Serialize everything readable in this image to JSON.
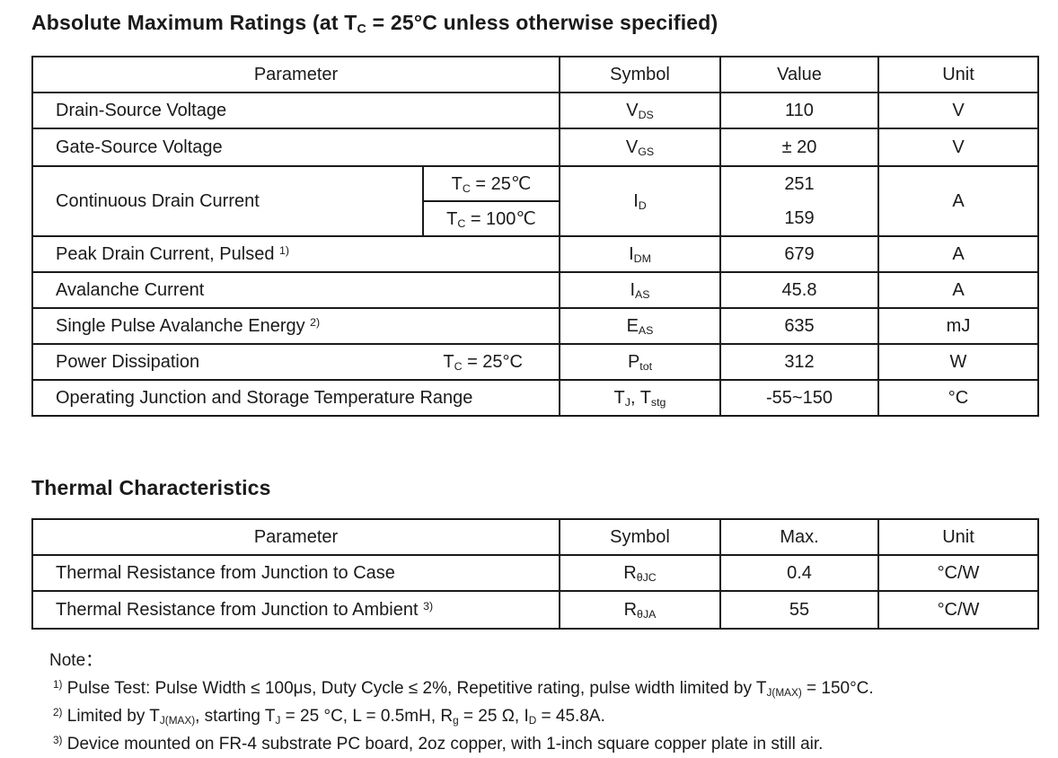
{
  "colors": {
    "text": "#1a1a1a",
    "border": "#1a1a1a",
    "background": "#ffffff"
  },
  "abs_max": {
    "title": [
      {
        "text": "Absolute Maximum Ratings (at T"
      },
      {
        "sub": "C"
      },
      {
        "text": " = 25°C unless otherwise specified)"
      }
    ],
    "headers": [
      "Parameter",
      "Symbol",
      "Value",
      "Unit"
    ],
    "rows": {
      "vds": {
        "parameter": [
          {
            "text": "Drain-Source Voltage"
          }
        ],
        "symbol": [
          {
            "text": "V"
          },
          {
            "sub": "DS"
          }
        ],
        "value": "110",
        "unit": "V"
      },
      "vgs": {
        "parameter": [
          {
            "text": "Gate-Source Voltage"
          }
        ],
        "symbol": [
          {
            "text": "V"
          },
          {
            "sub": "GS"
          }
        ],
        "value": "± 20",
        "unit": "V"
      },
      "id": {
        "parameter": [
          {
            "text": "Continuous Drain Current"
          }
        ],
        "cond1": [
          {
            "text": "T"
          },
          {
            "sub": "C"
          },
          {
            "text": " = 25℃"
          }
        ],
        "cond2": [
          {
            "text": "T"
          },
          {
            "sub": "C"
          },
          {
            "text": " = 100℃"
          }
        ],
        "symbol": [
          {
            "text": "I"
          },
          {
            "sub": "D"
          }
        ],
        "value1": "251",
        "value2": "159",
        "unit": "A"
      },
      "idm": {
        "parameter": [
          {
            "text": "Peak Drain Current, Pulsed "
          },
          {
            "sup": "1)"
          }
        ],
        "symbol": [
          {
            "text": "I"
          },
          {
            "sub": "DM"
          }
        ],
        "value": "679",
        "unit": "A"
      },
      "ias": {
        "parameter": [
          {
            "text": "Avalanche Current"
          }
        ],
        "symbol": [
          {
            "text": "I"
          },
          {
            "sub": "AS"
          }
        ],
        "value": "45.8",
        "unit": "A"
      },
      "eas": {
        "parameter": [
          {
            "text": "Single Pulse Avalanche Energy "
          },
          {
            "sup": "2)"
          }
        ],
        "symbol": [
          {
            "text": "E"
          },
          {
            "sub": "AS"
          }
        ],
        "value": "635",
        "unit": "mJ"
      },
      "ptot": {
        "parameter": [
          {
            "text": "Power Dissipation"
          }
        ],
        "condition": [
          {
            "text": "T"
          },
          {
            "sub": "C"
          },
          {
            "text": " = 25°C"
          }
        ],
        "symbol": [
          {
            "text": "P"
          },
          {
            "sub": "tot"
          }
        ],
        "value": "312",
        "unit": "W"
      },
      "tj": {
        "parameter": [
          {
            "text": "Operating Junction and Storage Temperature Range"
          }
        ],
        "symbol": [
          {
            "text": "T"
          },
          {
            "sub": "J"
          },
          {
            "text": ", T"
          },
          {
            "sub": "stg"
          }
        ],
        "value": "-55~150",
        "unit": "°C"
      }
    }
  },
  "thermal": {
    "title": [
      {
        "text": "Thermal Characteristics"
      }
    ],
    "headers": [
      "Parameter",
      "Symbol",
      "Max.",
      "Unit"
    ],
    "rows": {
      "rthjc": {
        "parameter": [
          {
            "text": "Thermal Resistance from Junction to Case"
          }
        ],
        "symbol": [
          {
            "text": "R"
          },
          {
            "sub": "θJC"
          }
        ],
        "value": "0.4",
        "unit": "°C/W"
      },
      "rthja": {
        "parameter": [
          {
            "text": "Thermal Resistance from Junction to Ambient "
          },
          {
            "sup": "3)"
          }
        ],
        "symbol": [
          {
            "text": "R"
          },
          {
            "sub": "θJA"
          }
        ],
        "value": "55",
        "unit": "°C/W"
      }
    }
  },
  "notes": {
    "label": "Note：",
    "items": [
      [
        {
          "sup": "1)"
        },
        {
          "text": " Pulse Test: Pulse Width ≤ 100μs, Duty Cycle ≤ 2%, Repetitive rating, pulse width limited by T"
        },
        {
          "sub": "J(MAX)"
        },
        {
          "text": " = 150°C."
        }
      ],
      [
        {
          "sup": "2)"
        },
        {
          "text": " Limited by T"
        },
        {
          "sub": "J(MAX)"
        },
        {
          "text": ", starting T"
        },
        {
          "sub": "J"
        },
        {
          "text": " = 25 °C, L = 0.5mH, R"
        },
        {
          "sub": "g"
        },
        {
          "text": " = 25 Ω, I"
        },
        {
          "sub": "D"
        },
        {
          "text": " = 45.8A."
        }
      ],
      [
        {
          "sup": "3)"
        },
        {
          "text": " Device mounted on FR-4 substrate PC board, 2oz copper, with 1-inch square copper plate in still air."
        }
      ]
    ]
  }
}
